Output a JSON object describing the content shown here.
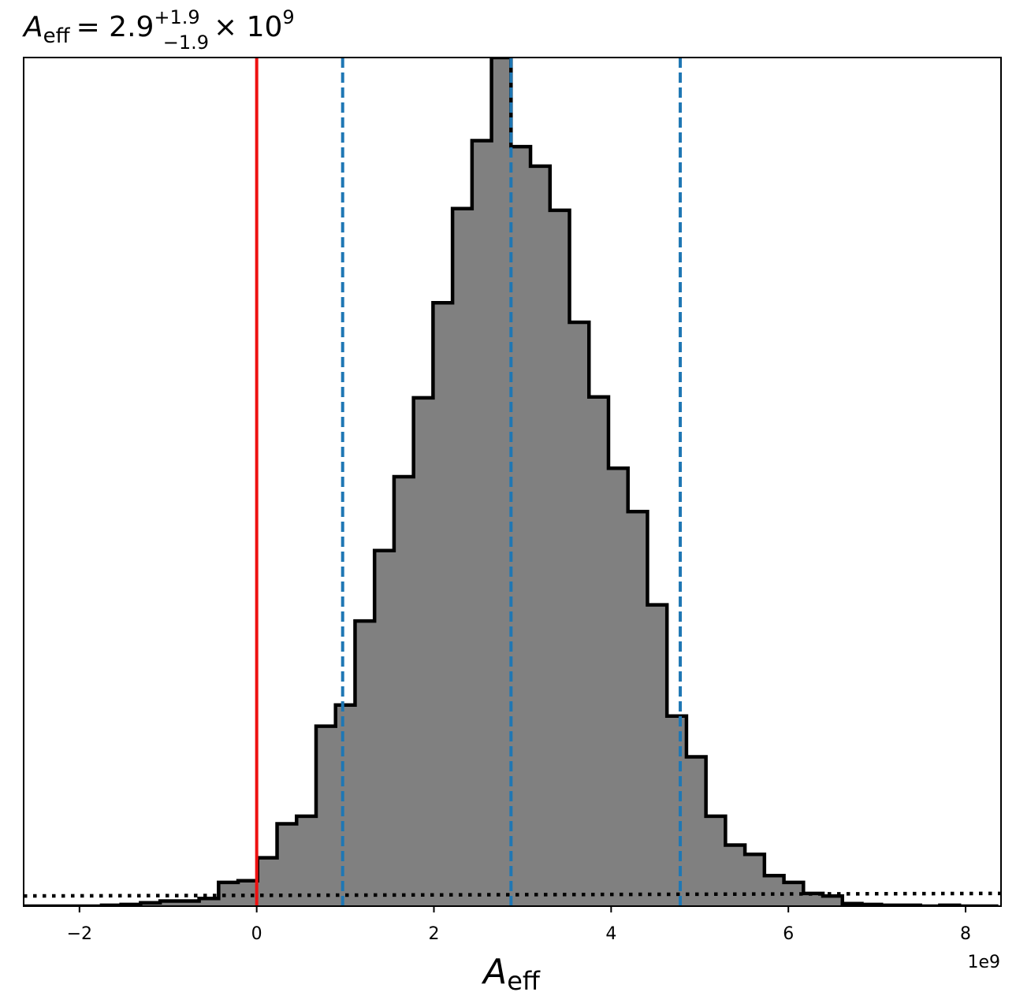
{
  "chart_data": {
    "type": "bar",
    "title": {
      "symbol": "A",
      "symbol_sub": "eff",
      "equals": "= 2.9",
      "upper": "+1.9",
      "lower": "−1.9",
      "times": "× 10",
      "exp": "9"
    },
    "xlabel": {
      "symbol": "A",
      "sub": "eff"
    },
    "x_offset_text": "1e9",
    "xlim": [
      -2.63,
      8.4
    ],
    "ylim": [
      0,
      1.0
    ],
    "xticks": [
      -2,
      0,
      2,
      4,
      6,
      8
    ],
    "xtick_labels": [
      "−2",
      "0",
      "2",
      "4",
      "6",
      "8"
    ],
    "bin_edges": [
      -2.63,
      -2.41,
      -2.19,
      -1.97,
      -1.75,
      -1.53,
      -1.31,
      -1.09,
      -0.87,
      -0.65,
      -0.43,
      -0.21,
      0.01,
      0.23,
      0.45,
      0.67,
      0.89,
      1.11,
      1.33,
      1.55,
      1.77,
      1.99,
      2.21,
      2.43,
      2.65,
      2.87,
      3.09,
      3.31,
      3.53,
      3.75,
      3.97,
      4.19,
      4.41,
      4.63,
      4.85,
      5.07,
      5.29,
      5.51,
      5.73,
      5.95,
      6.17,
      6.39,
      6.61,
      6.83,
      7.05,
      7.27,
      7.49,
      7.71,
      7.93,
      8.15,
      8.37
    ],
    "counts": [
      0.0,
      0.0,
      0.0,
      0.0,
      0.001,
      0.002,
      0.004,
      0.006,
      0.006,
      0.009,
      0.028,
      0.03,
      0.057,
      0.097,
      0.106,
      0.212,
      0.237,
      0.336,
      0.419,
      0.506,
      0.599,
      0.711,
      0.822,
      0.902,
      1.0,
      0.895,
      0.872,
      0.82,
      0.688,
      0.6,
      0.516,
      0.465,
      0.355,
      0.224,
      0.176,
      0.106,
      0.072,
      0.061,
      0.036,
      0.028,
      0.015,
      0.012,
      0.003,
      0.002,
      0.001,
      0.001,
      0.0,
      0.001,
      0.0,
      0.0
    ],
    "prior_line": {
      "style": "dotted",
      "y": [
        0.012,
        0.015
      ]
    },
    "vlines": [
      {
        "x": 0.0,
        "color": "#ee1111",
        "style": "solid"
      },
      {
        "x": 0.97,
        "color": "#1f77b4",
        "style": "dashed"
      },
      {
        "x": 2.87,
        "color": "#1f77b4",
        "style": "dashed"
      },
      {
        "x": 4.78,
        "color": "#1f77b4",
        "style": "dashed"
      }
    ],
    "fill_color": "#808080",
    "edge_color": "#000000"
  }
}
